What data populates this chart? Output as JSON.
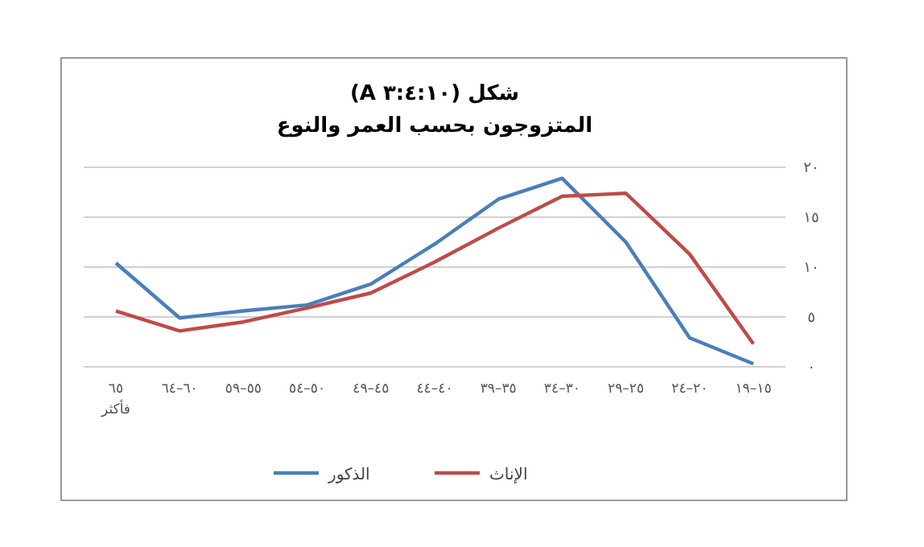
{
  "chart_data": {
    "type": "line",
    "title": "شكل (٣:٤:١٠ A)",
    "subtitle": "المتزوجون بحسب العمر والنوع",
    "categories": [
      "٦٥ فأكثر",
      "٦٠–٦٤",
      "٥٥–٥٩",
      "٥٠–٥٤",
      "٤٥–٤٩",
      "٤٠–٤٤",
      "٣٥–٣٩",
      "٣٠–٣٤",
      "٢٥–٢٩",
      "٢٠–٢٤",
      "١٥–١٩"
    ],
    "series": [
      {
        "name": "الذكور",
        "color": "#4a7ebb",
        "values": [
          10.4,
          4.9,
          5.6,
          6.2,
          8.3,
          12.3,
          16.8,
          18.9,
          12.5,
          2.9,
          0.3
        ]
      },
      {
        "name": "الإناث",
        "color": "#be4b48",
        "values": [
          5.6,
          3.6,
          4.5,
          5.9,
          7.4,
          10.5,
          13.9,
          17.1,
          17.4,
          11.3,
          2.3
        ]
      }
    ],
    "ylim": [
      0,
      20
    ],
    "yticks": [
      {
        "value": 0,
        "label": "٠"
      },
      {
        "value": 5,
        "label": "٥"
      },
      {
        "value": 10,
        "label": "١٠"
      },
      {
        "value": 15,
        "label": "١٥"
      },
      {
        "value": 20,
        "label": "٢٠"
      }
    ],
    "grid": "y",
    "legend": "bottom",
    "marker": "none",
    "line_style": "solid"
  }
}
